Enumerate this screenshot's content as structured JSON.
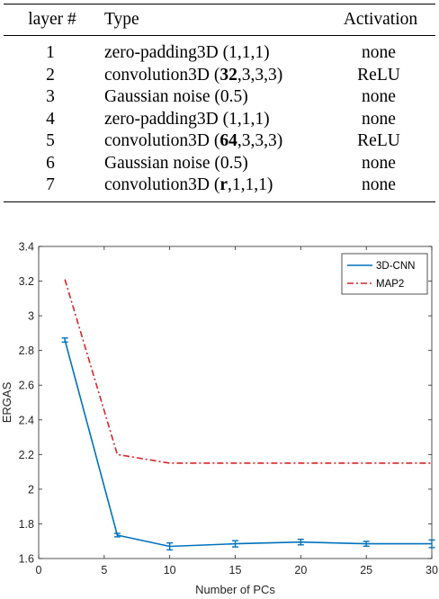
{
  "table": {
    "headers": [
      "layer #",
      "Type",
      "Activation"
    ],
    "rows": [
      {
        "layer": "1",
        "type_pre": "zero-padding3D (1,1,1)",
        "type_bold": "",
        "type_post": "",
        "activation": "none"
      },
      {
        "layer": "2",
        "type_pre": "convolution3D (",
        "type_bold": "32",
        "type_post": ",3,3,3)",
        "activation": "ReLU"
      },
      {
        "layer": "3",
        "type_pre": "Gaussian noise (0.5)",
        "type_bold": "",
        "type_post": "",
        "activation": "none"
      },
      {
        "layer": "4",
        "type_pre": "zero-padding3D (1,1,1)",
        "type_bold": "",
        "type_post": "",
        "activation": "none"
      },
      {
        "layer": "5",
        "type_pre": "convolution3D (",
        "type_bold": "64",
        "type_post": ",3,3,3)",
        "activation": "ReLU"
      },
      {
        "layer": "6",
        "type_pre": "Gaussian noise (0.5)",
        "type_bold": "",
        "type_post": "",
        "activation": "none"
      },
      {
        "layer": "7",
        "type_pre": "convolution3D (",
        "type_bold": "r",
        "type_post": ",1,1,1)",
        "activation": "none"
      }
    ]
  },
  "chart_data": {
    "type": "line",
    "xlabel": "Number of PCs",
    "ylabel": "ERGAS",
    "xlim": [
      0,
      30
    ],
    "ylim": [
      1.6,
      3.4
    ],
    "xticks": [
      0,
      5,
      10,
      15,
      20,
      25,
      30
    ],
    "yticks": [
      1.6,
      1.8,
      2,
      2.2,
      2.4,
      2.6,
      2.8,
      3,
      3.2,
      3.4
    ],
    "ytick_labels": [
      "1.6",
      "1.8",
      "2",
      "2.2",
      "2.4",
      "2.6",
      "2.8",
      "3",
      "3.2",
      "3.4"
    ],
    "grid": false,
    "legend_position": "top-right",
    "series": [
      {
        "name": "3D-CNN",
        "color": "#0072bd",
        "style": "solid",
        "x": [
          2,
          6,
          10,
          15,
          20,
          25,
          30
        ],
        "y": [
          2.86,
          1.735,
          1.67,
          1.685,
          1.695,
          1.685,
          1.685
        ],
        "err": [
          0.012,
          0.01,
          0.02,
          0.018,
          0.016,
          0.014,
          0.022
        ]
      },
      {
        "name": "MAP2",
        "color": "#d62728",
        "style": "dashdot",
        "x": [
          2,
          6,
          10,
          15,
          20,
          25,
          30
        ],
        "y": [
          3.21,
          2.2,
          2.15,
          2.15,
          2.15,
          2.15,
          2.15
        ]
      }
    ]
  }
}
